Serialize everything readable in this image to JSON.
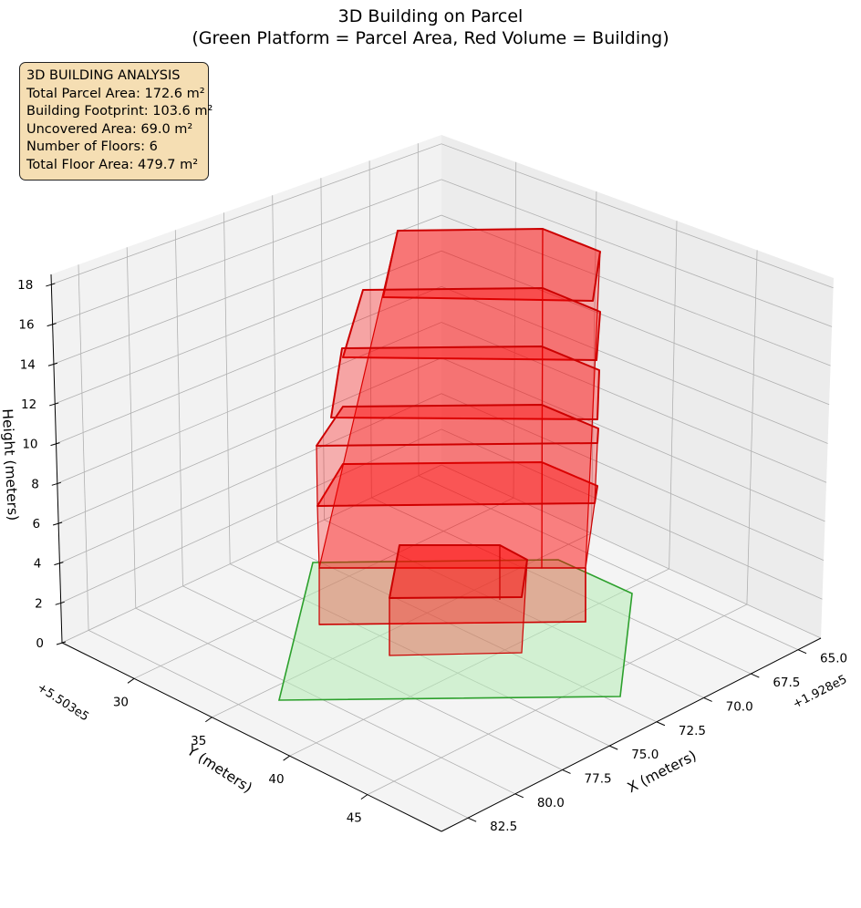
{
  "chart_data": {
    "type": "3d-polygon",
    "title": "3D Building on Parcel",
    "subtitle": "(Green Platform = Parcel Area, Red Volume = Building)",
    "xlabel": "X (meters)",
    "ylabel": "Y (meters)",
    "zlabel": "Height (meters)",
    "x_offset_label": "+1.928e5",
    "y_offset_label": "+5.503e5",
    "xticks": [
      "65.0",
      "67.5",
      "70.0",
      "72.5",
      "75.0",
      "77.5",
      "80.0",
      "82.5"
    ],
    "yticks": [
      "30",
      "35",
      "40",
      "45"
    ],
    "zticks": [
      "0",
      "2",
      "4",
      "6",
      "8",
      "10",
      "12",
      "14",
      "16",
      "18"
    ],
    "grid": true,
    "info": {
      "heading": "3D BUILDING ANALYSIS",
      "lines": [
        "Total Parcel Area: 172.6 m²",
        "Building Footprint: 103.6 m²",
        "Uncovered Area: 69.0 m²",
        "Number of Floors: 6",
        "Total Floor Area: 479.7 m²"
      ]
    },
    "colors": {
      "parcel_fill": "#b6ecb6",
      "parcel_edge": "#2ca02c",
      "building_fill": "#ff0000",
      "building_edge": "#cc0000"
    }
  }
}
